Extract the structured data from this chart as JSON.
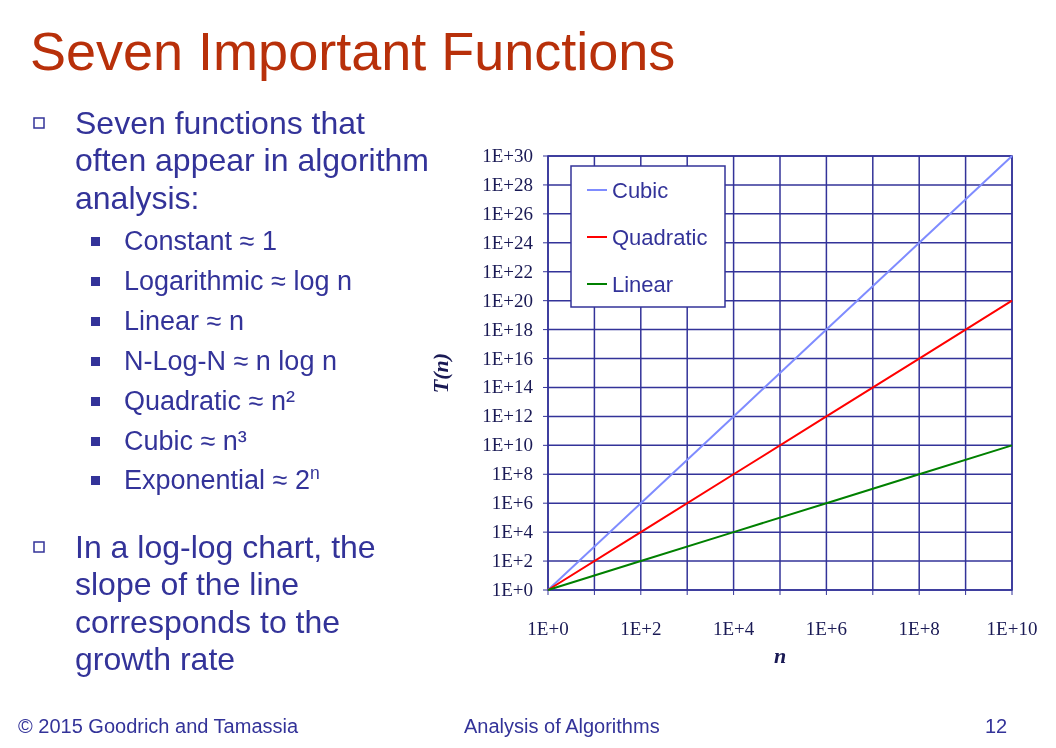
{
  "chart_data": {
    "type": "line",
    "title": "Seven Important Functions",
    "xlabel": "n",
    "ylabel": "T(n)",
    "x": [
      1,
      100,
      10000,
      1000000,
      100000000,
      10000000000
    ],
    "series": [
      {
        "name": "Cubic",
        "color": "#7f8cff",
        "values": [
          1,
          1000000.0,
          1000000000000.0,
          1e+18,
          1e+24,
          1e+30
        ]
      },
      {
        "name": "Quadratic",
        "color": "#ff0000",
        "values": [
          1,
          10000.0,
          100000000.0,
          1000000000000.0,
          1e+16,
          1e+20
        ]
      },
      {
        "name": "Linear",
        "color": "#008000",
        "values": [
          1,
          100,
          10000,
          1000000,
          100000000,
          10000000000
        ]
      }
    ],
    "log": "xy",
    "xlim": [
      1,
      10000000000
    ],
    "ylim": [
      1,
      1e+30
    ],
    "xticks": [
      {
        "value": 1,
        "label": "1E+0"
      },
      {
        "value": 10,
        "label": null
      },
      {
        "value": 100,
        "label": "1E+2"
      },
      {
        "value": 1000,
        "label": null
      },
      {
        "value": 10000,
        "label": "1E+4"
      },
      {
        "value": 100000,
        "label": null
      },
      {
        "value": 1000000,
        "label": "1E+6"
      },
      {
        "value": 10000000,
        "label": null
      },
      {
        "value": 100000000,
        "label": "1E+8"
      },
      {
        "value": 1000000000,
        "label": null
      },
      {
        "value": 10000000000,
        "label": "1E+10"
      }
    ],
    "yticks": [
      {
        "value": 1,
        "label": "1E+0"
      },
      {
        "value": 100.0,
        "label": "1E+2"
      },
      {
        "value": 10000.0,
        "label": "1E+4"
      },
      {
        "value": 1000000.0,
        "label": "1E+6"
      },
      {
        "value": 100000000.0,
        "label": "1E+8"
      },
      {
        "value": 10000000000.0,
        "label": "1E+10"
      },
      {
        "value": 1000000000000.0,
        "label": "1E+12"
      },
      {
        "value": 100000000000000.0,
        "label": "1E+14"
      },
      {
        "value": 1e+16,
        "label": "1E+16"
      },
      {
        "value": 1e+18,
        "label": "1E+18"
      },
      {
        "value": 1e+20,
        "label": "1E+20"
      },
      {
        "value": 1e+22,
        "label": "1E+22"
      },
      {
        "value": 1e+24,
        "label": "1E+24"
      },
      {
        "value": 1e+26,
        "label": "1E+26"
      },
      {
        "value": 1e+28,
        "label": "1E+28"
      },
      {
        "value": 1e+30,
        "label": "1E+30"
      }
    ],
    "grid": true,
    "legend": "top left",
    "marker": "none",
    "line_style": "solid",
    "annotations": [
      "Seven functions that\noften appear in algorithm\nanalysis:",
      "Constant ≈ 1",
      "Logarithmic ≈ log n",
      "Linear ≈ n",
      "N-Log-N ≈ n log n",
      "Quadratic ≈ n²",
      "Cubic ≈ n³",
      "Exponential ≈ 2$^{n}$",
      "In a log-log chart, the\nslope of the line\ncorresponds to the\ngrowth rate",
      "© 2015 Goodrich and Tamassia",
      "Analysis of Algorithms",
      "12"
    ]
  }
}
